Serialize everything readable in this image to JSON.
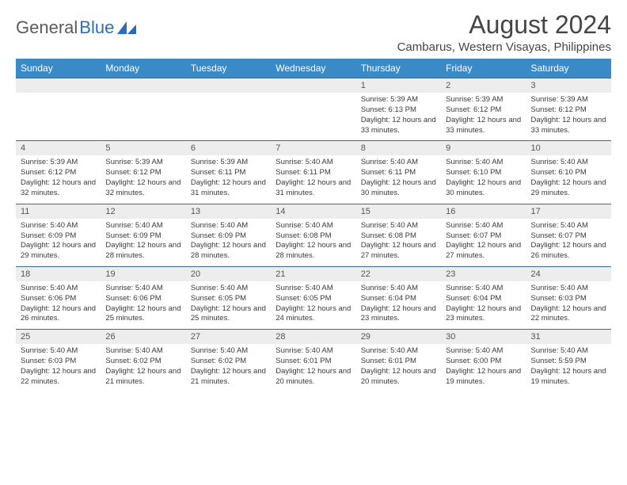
{
  "logo": {
    "text_gray": "General",
    "text_blue": "Blue"
  },
  "title": "August 2024",
  "location": "Cambarus, Western Visayas, Philippines",
  "colors": {
    "header_bg": "#3a8ac8",
    "header_text": "#ffffff",
    "row_border": "#3a6a95",
    "daynum_bg": "#ededed",
    "daynum_text": "#555555",
    "body_text": "#3a3a3a",
    "title_text": "#454545",
    "logo_gray": "#5a5a5a",
    "logo_blue": "#2a6db8",
    "page_bg": "#ffffff"
  },
  "layout": {
    "columns": 7,
    "week_rows": 5,
    "header_font_size_pt": 12,
    "daynum_font_size_pt": 11,
    "content_font_size_pt": 9.5,
    "title_font_size_pt": 32,
    "location_font_size_pt": 15
  },
  "day_labels": [
    "Sunday",
    "Monday",
    "Tuesday",
    "Wednesday",
    "Thursday",
    "Friday",
    "Saturday"
  ],
  "weeks": [
    [
      null,
      null,
      null,
      null,
      {
        "n": "1",
        "sr": "5:39 AM",
        "ss": "6:13 PM",
        "dl": "12 hours and 33 minutes."
      },
      {
        "n": "2",
        "sr": "5:39 AM",
        "ss": "6:12 PM",
        "dl": "12 hours and 33 minutes."
      },
      {
        "n": "3",
        "sr": "5:39 AM",
        "ss": "6:12 PM",
        "dl": "12 hours and 33 minutes."
      }
    ],
    [
      {
        "n": "4",
        "sr": "5:39 AM",
        "ss": "6:12 PM",
        "dl": "12 hours and 32 minutes."
      },
      {
        "n": "5",
        "sr": "5:39 AM",
        "ss": "6:12 PM",
        "dl": "12 hours and 32 minutes."
      },
      {
        "n": "6",
        "sr": "5:39 AM",
        "ss": "6:11 PM",
        "dl": "12 hours and 31 minutes."
      },
      {
        "n": "7",
        "sr": "5:40 AM",
        "ss": "6:11 PM",
        "dl": "12 hours and 31 minutes."
      },
      {
        "n": "8",
        "sr": "5:40 AM",
        "ss": "6:11 PM",
        "dl": "12 hours and 30 minutes."
      },
      {
        "n": "9",
        "sr": "5:40 AM",
        "ss": "6:10 PM",
        "dl": "12 hours and 30 minutes."
      },
      {
        "n": "10",
        "sr": "5:40 AM",
        "ss": "6:10 PM",
        "dl": "12 hours and 29 minutes."
      }
    ],
    [
      {
        "n": "11",
        "sr": "5:40 AM",
        "ss": "6:09 PM",
        "dl": "12 hours and 29 minutes."
      },
      {
        "n": "12",
        "sr": "5:40 AM",
        "ss": "6:09 PM",
        "dl": "12 hours and 28 minutes."
      },
      {
        "n": "13",
        "sr": "5:40 AM",
        "ss": "6:09 PM",
        "dl": "12 hours and 28 minutes."
      },
      {
        "n": "14",
        "sr": "5:40 AM",
        "ss": "6:08 PM",
        "dl": "12 hours and 28 minutes."
      },
      {
        "n": "15",
        "sr": "5:40 AM",
        "ss": "6:08 PM",
        "dl": "12 hours and 27 minutes."
      },
      {
        "n": "16",
        "sr": "5:40 AM",
        "ss": "6:07 PM",
        "dl": "12 hours and 27 minutes."
      },
      {
        "n": "17",
        "sr": "5:40 AM",
        "ss": "6:07 PM",
        "dl": "12 hours and 26 minutes."
      }
    ],
    [
      {
        "n": "18",
        "sr": "5:40 AM",
        "ss": "6:06 PM",
        "dl": "12 hours and 26 minutes."
      },
      {
        "n": "19",
        "sr": "5:40 AM",
        "ss": "6:06 PM",
        "dl": "12 hours and 25 minutes."
      },
      {
        "n": "20",
        "sr": "5:40 AM",
        "ss": "6:05 PM",
        "dl": "12 hours and 25 minutes."
      },
      {
        "n": "21",
        "sr": "5:40 AM",
        "ss": "6:05 PM",
        "dl": "12 hours and 24 minutes."
      },
      {
        "n": "22",
        "sr": "5:40 AM",
        "ss": "6:04 PM",
        "dl": "12 hours and 23 minutes."
      },
      {
        "n": "23",
        "sr": "5:40 AM",
        "ss": "6:04 PM",
        "dl": "12 hours and 23 minutes."
      },
      {
        "n": "24",
        "sr": "5:40 AM",
        "ss": "6:03 PM",
        "dl": "12 hours and 22 minutes."
      }
    ],
    [
      {
        "n": "25",
        "sr": "5:40 AM",
        "ss": "6:03 PM",
        "dl": "12 hours and 22 minutes."
      },
      {
        "n": "26",
        "sr": "5:40 AM",
        "ss": "6:02 PM",
        "dl": "12 hours and 21 minutes."
      },
      {
        "n": "27",
        "sr": "5:40 AM",
        "ss": "6:02 PM",
        "dl": "12 hours and 21 minutes."
      },
      {
        "n": "28",
        "sr": "5:40 AM",
        "ss": "6:01 PM",
        "dl": "12 hours and 20 minutes."
      },
      {
        "n": "29",
        "sr": "5:40 AM",
        "ss": "6:01 PM",
        "dl": "12 hours and 20 minutes."
      },
      {
        "n": "30",
        "sr": "5:40 AM",
        "ss": "6:00 PM",
        "dl": "12 hours and 19 minutes."
      },
      {
        "n": "31",
        "sr": "5:40 AM",
        "ss": "5:59 PM",
        "dl": "12 hours and 19 minutes."
      }
    ]
  ],
  "content_labels": {
    "sunrise": "Sunrise:",
    "sunset": "Sunset:",
    "daylight": "Daylight:"
  }
}
